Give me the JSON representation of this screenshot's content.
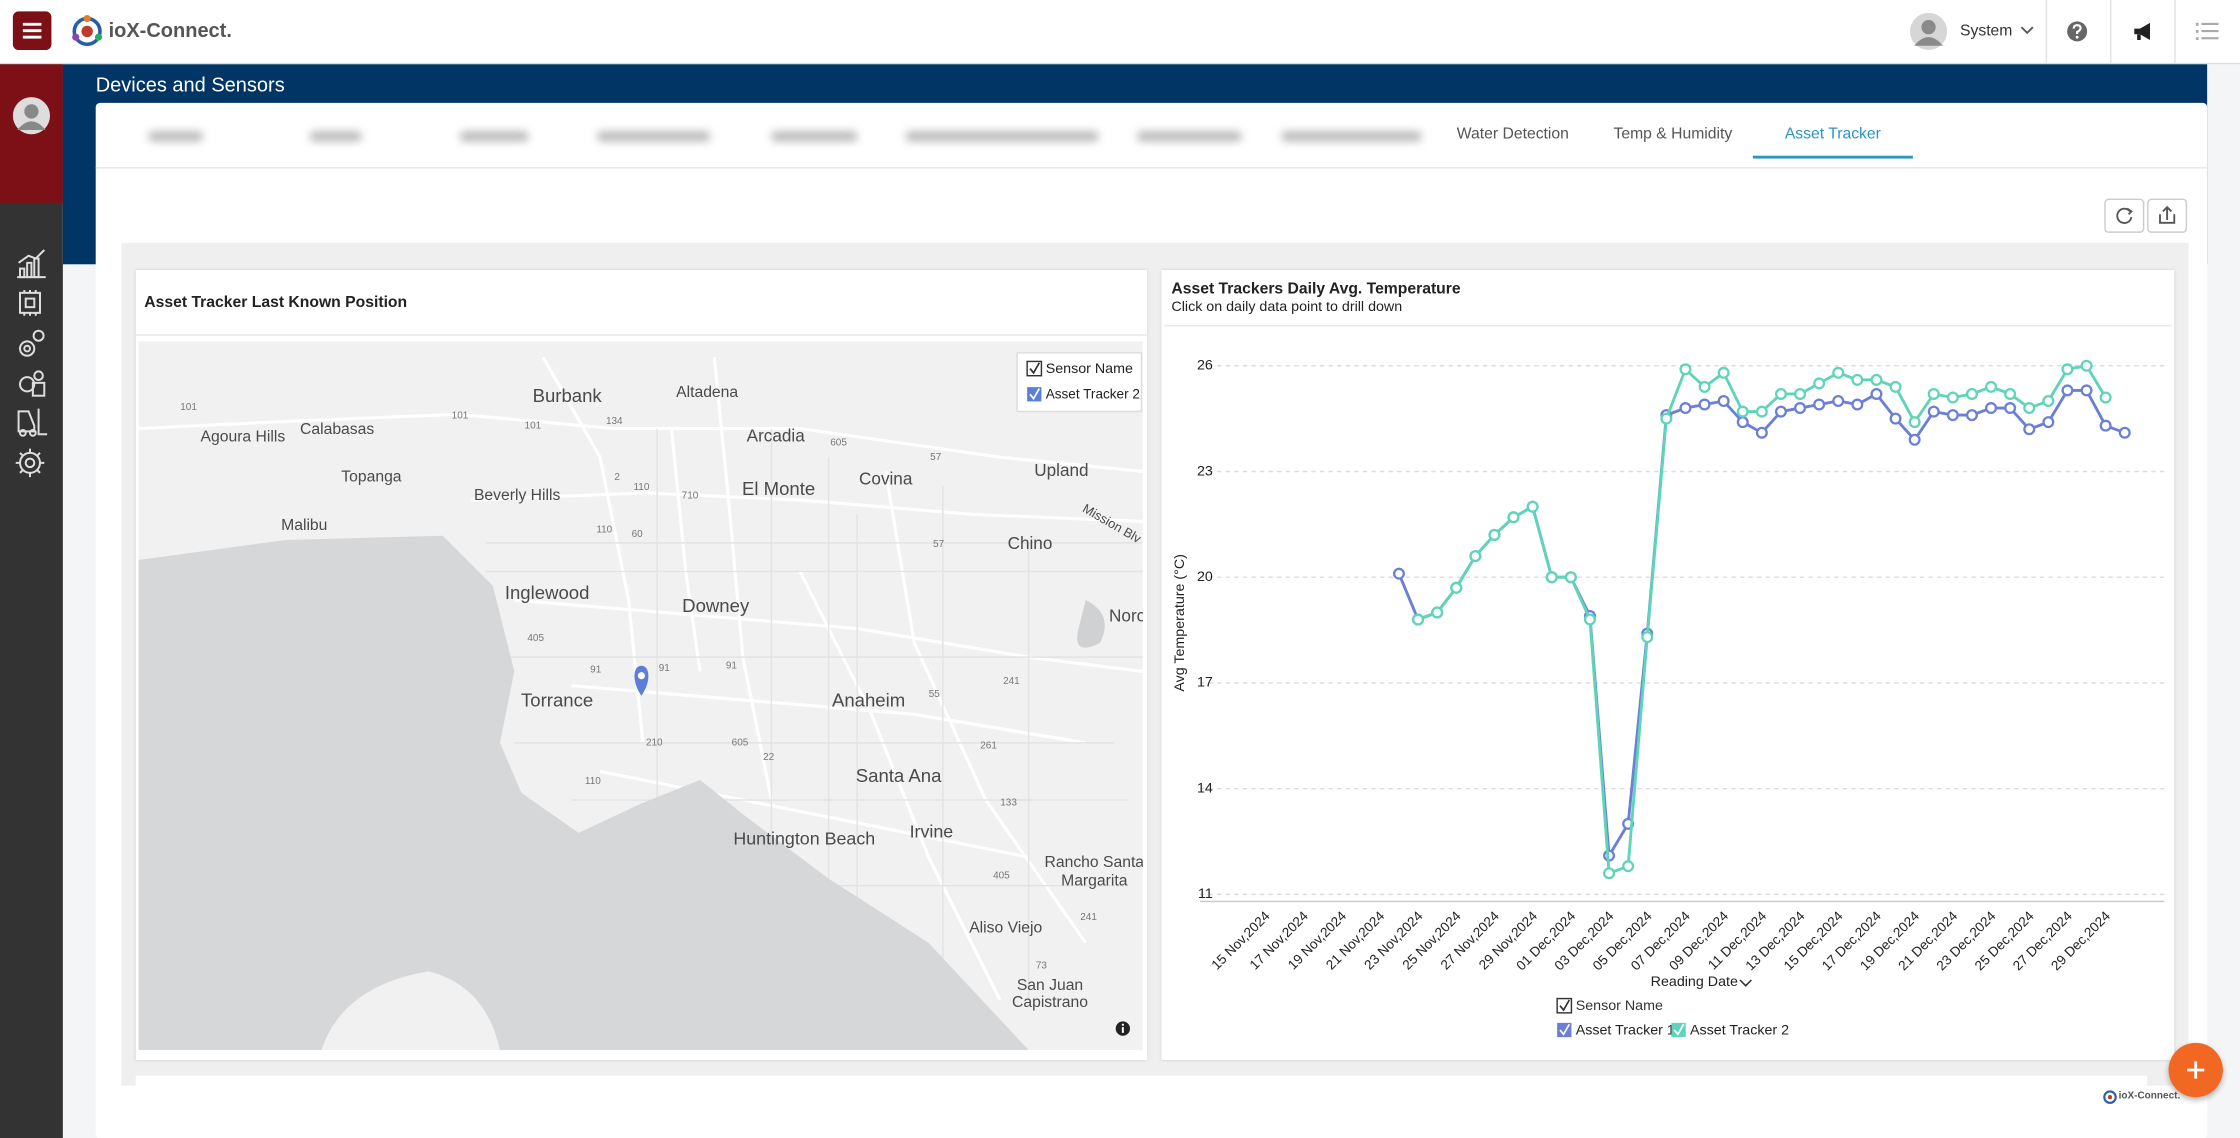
{
  "header": {
    "brand": "ioX-Connect.",
    "user": "System"
  },
  "page_title": "Devices and Sensors",
  "tabs": [
    "Water Detection",
    "Temp & Humidity",
    "Asset Tracker"
  ],
  "map": {
    "title": "Asset Tracker Last Known Position",
    "legend_title": "Sensor Name",
    "legend_items": [
      "Asset Tracker 2"
    ],
    "places": [
      "Burbank",
      "Altadena",
      "Agoura Hills",
      "Calabasas",
      "Arcadia",
      "Topanga",
      "Covina",
      "Upland",
      "Beverly Hills",
      "El Monte",
      "Malibu",
      "Chino",
      "Inglewood",
      "Downey",
      "Norc",
      "Torrance",
      "Anaheim",
      "Santa Ana",
      "Huntington Beach",
      "Irvine",
      "Rancho Santa",
      "Margarita",
      "Aliso Viejo",
      "San Juan",
      "Capistrano",
      "Mission Blv"
    ],
    "roads": [
      "101",
      "101",
      "101",
      "134",
      "2",
      "110",
      "710",
      "605",
      "57",
      "60",
      "57",
      "405",
      "110",
      "91",
      "91",
      "91",
      "605",
      "22",
      "55",
      "241",
      "261",
      "133",
      "405",
      "73",
      "241",
      "110",
      "210"
    ]
  },
  "chart_data": {
    "type": "line",
    "title": "Asset Trackers Daily Avg. Temperature",
    "subtitle": "Click on daily data point to drill down",
    "x_label": "Reading Date",
    "y_label": "Avg Temperature (°C)",
    "legend_title": "Sensor Name",
    "categories": [
      "15 Nov,2024",
      null,
      "17 Nov,2024",
      null,
      "19 Nov,2024",
      null,
      "21 Nov,2024",
      null,
      "23 Nov,2024",
      null,
      "25 Nov,2024",
      null,
      "27 Nov,2024",
      null,
      "29 Nov,2024",
      null,
      "01 Dec,2024",
      null,
      "03 Dec,2024",
      null,
      "05 Dec,2024",
      null,
      "07 Dec,2024",
      null,
      "09 Dec,2024",
      null,
      "11 Dec,2024",
      null,
      "13 Dec,2024",
      null,
      "15 Dec,2024",
      null,
      "17 Dec,2024",
      null,
      "19 Dec,2024",
      null,
      "21 Dec,2024",
      null,
      "23 Dec,2024",
      null,
      "25 Dec,2024",
      null,
      "27 Dec,2024",
      null,
      "29 Dec,2024",
      null
    ],
    "series": [
      {
        "name": "Asset Tracker 1",
        "color": "#6b7fd7",
        "values": [
          null,
          null,
          null,
          null,
          null,
          null,
          null,
          20.1,
          18.8,
          19.0,
          19.7,
          20.6,
          21.2,
          21.7,
          22.0,
          20.0,
          20.0,
          18.9,
          12.1,
          13.0,
          18.4,
          24.6,
          24.8,
          24.9,
          25.0,
          24.4,
          24.1,
          24.7,
          24.8,
          24.9,
          25.0,
          24.9,
          25.2,
          24.5,
          23.9,
          24.7,
          24.6,
          24.6,
          24.8,
          24.8,
          24.2,
          24.4,
          25.3,
          25.3,
          24.3,
          24.1
        ]
      },
      {
        "name": "Asset Tracker 2",
        "color": "#5fd4b8",
        "values": [
          null,
          null,
          null,
          null,
          null,
          null,
          null,
          null,
          18.8,
          19.0,
          19.7,
          20.6,
          21.2,
          21.7,
          22.0,
          20.0,
          20.0,
          18.8,
          11.6,
          11.8,
          18.3,
          24.5,
          25.9,
          25.4,
          25.8,
          24.7,
          24.7,
          25.2,
          25.2,
          25.5,
          25.8,
          25.6,
          25.6,
          25.4,
          24.4,
          25.2,
          25.1,
          25.2,
          25.4,
          25.2,
          24.8,
          25.0,
          25.9,
          26.0,
          25.1,
          null
        ]
      }
    ],
    "ylim": [
      10.8,
      26.65
    ],
    "yticks": [
      11,
      14,
      17,
      20,
      23,
      26
    ],
    "grid": true
  },
  "footer": {
    "brand": "ioX-Connect."
  }
}
